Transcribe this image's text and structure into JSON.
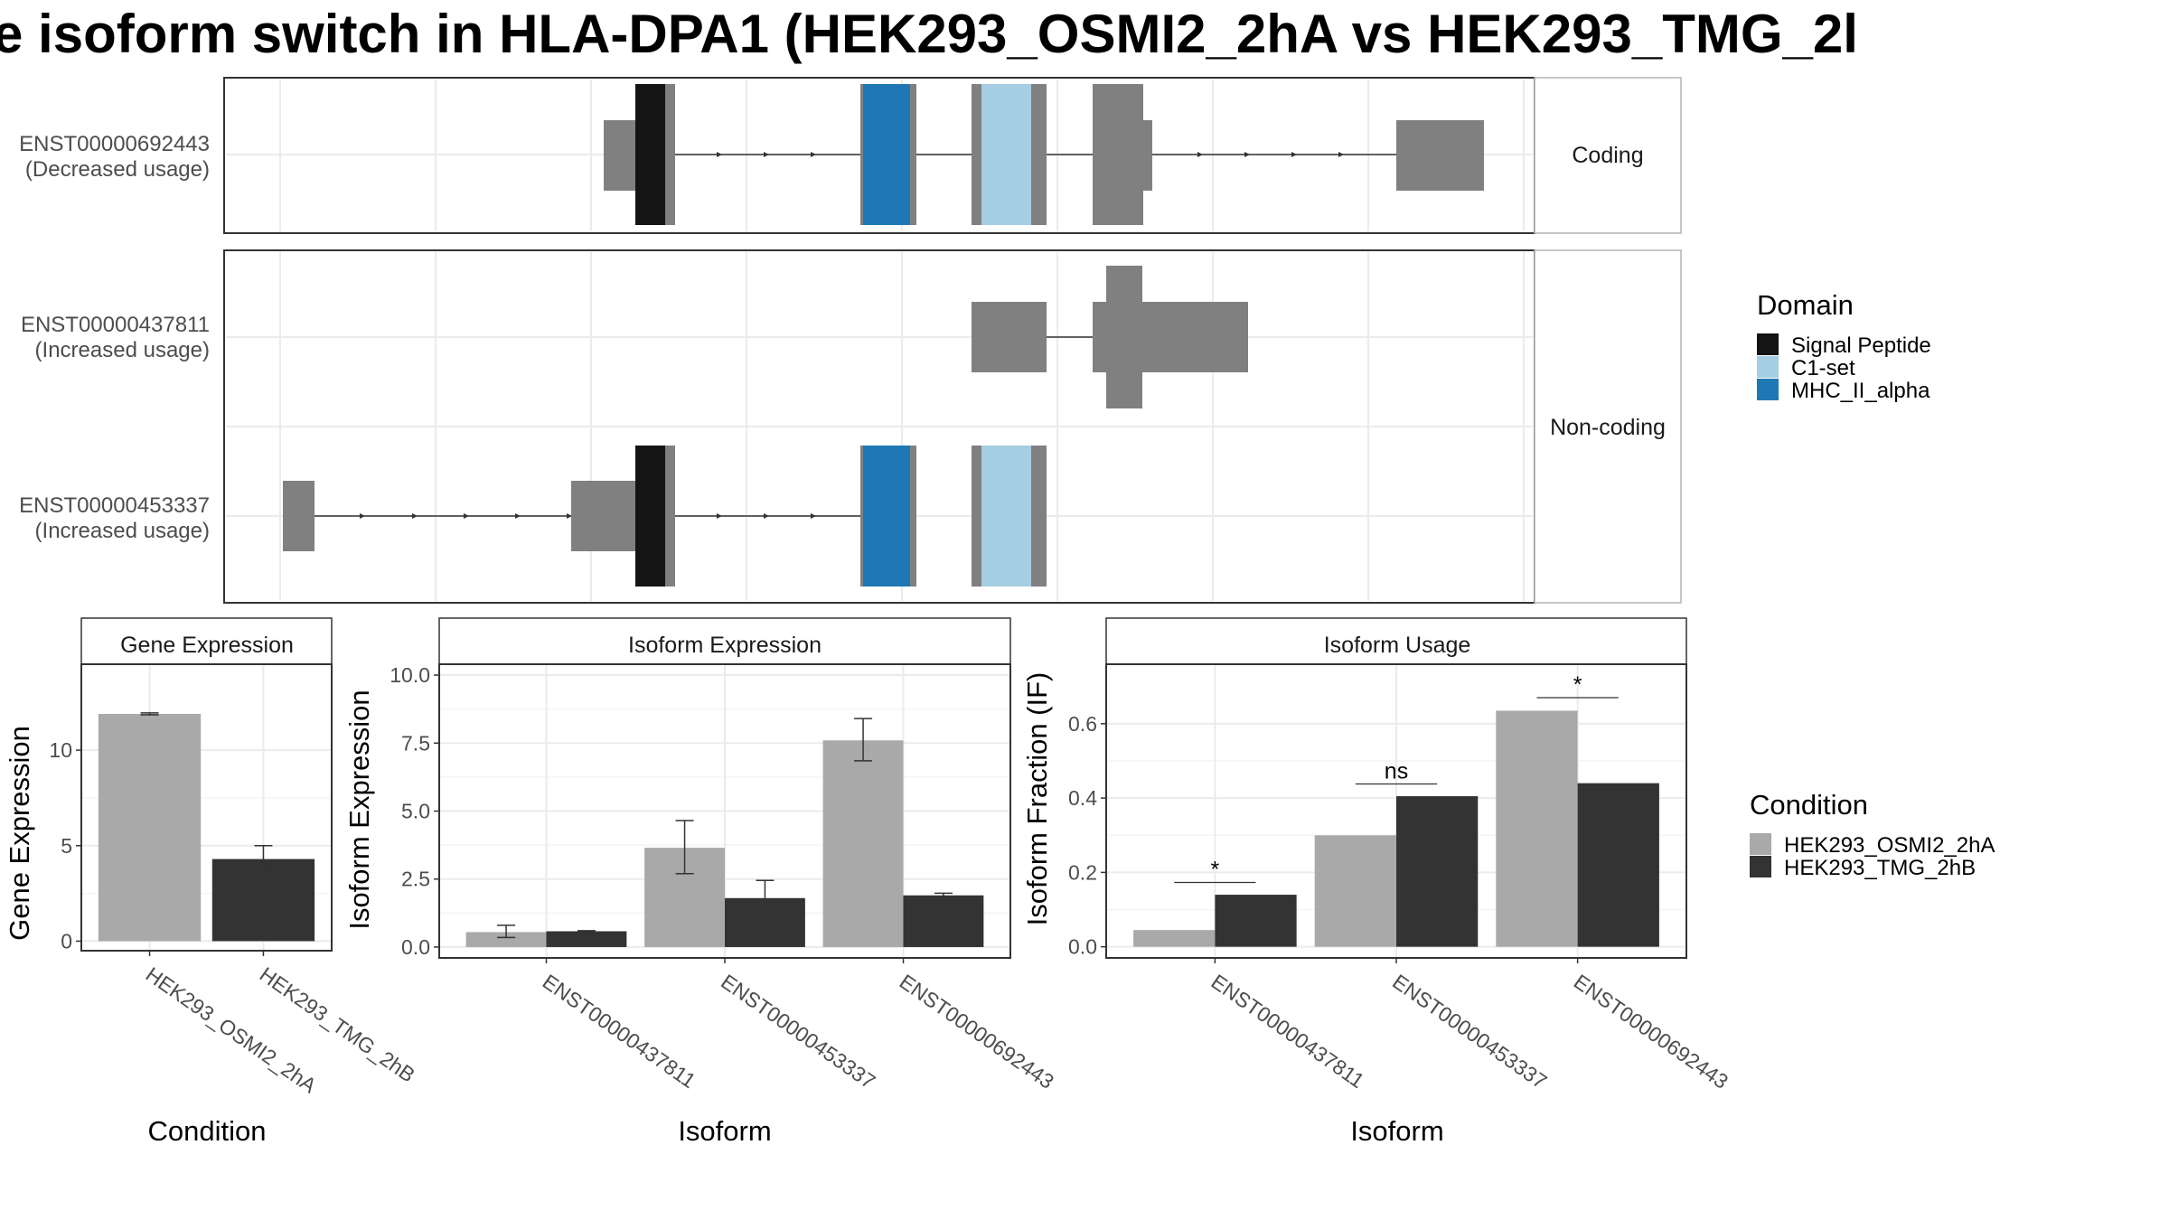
{
  "title": "e isoform switch in HLA-DPA1 (HEK293_OSMI2_2hA vs HEK293_TMG_2l",
  "colors": {
    "exon": "#808080",
    "intron": "#333333",
    "signal_peptide": "#141414",
    "c1_set": "#a6cee3",
    "mhc_ii_alpha": "#1f78b4",
    "condition_a": "#a9a9a9",
    "condition_b": "#333333",
    "grid": "#ebebeb",
    "strip_fill": "#ffffff"
  },
  "structure": {
    "facets": [
      {
        "label": "Coding",
        "transcripts": [
          "ENST00000692443"
        ]
      },
      {
        "label": "Non-coding",
        "transcripts": [
          "ENST00000437811",
          "ENST00000453337"
        ]
      }
    ],
    "transcripts": [
      {
        "id": "ENST00000692443",
        "usage": "(Decreased usage)"
      },
      {
        "id": "ENST00000437811",
        "usage": "(Increased usage)"
      },
      {
        "id": "ENST00000453337",
        "usage": "(Increased usage)"
      }
    ]
  },
  "domain_legend": {
    "title": "Domain",
    "items": [
      {
        "label": "Signal Peptide",
        "color": "#141414"
      },
      {
        "label": "C1-set",
        "color": "#a6cee3"
      },
      {
        "label": "MHC_II_alpha",
        "color": "#1f78b4"
      }
    ]
  },
  "condition_legend": {
    "title": "Condition",
    "items": [
      {
        "label": "HEK293_OSMI2_2hA",
        "color": "#a9a9a9"
      },
      {
        "label": "HEK293_TMG_2hB",
        "color": "#333333"
      }
    ]
  },
  "chart_data": [
    {
      "type": "bar",
      "title": "Gene Expression",
      "xlabel": "Condition",
      "ylabel": "Gene Expression",
      "categories": [
        "HEK293_OSMI2_2hA",
        "HEK293_TMG_2hB"
      ],
      "values": [
        11.9,
        4.3
      ],
      "error_low": [
        11.85,
        3.6
      ],
      "error_high": [
        11.95,
        5.0
      ],
      "bar_colors": [
        "#a9a9a9",
        "#333333"
      ],
      "ylim": [
        -0.5,
        14.5
      ],
      "yticks": [
        0,
        5,
        10
      ],
      "ytick_labels": [
        "0",
        "5",
        "10"
      ]
    },
    {
      "type": "bar",
      "title": "Isoform Expression",
      "xlabel": "Isoform",
      "ylabel": "Isoform Expression",
      "categories": [
        "ENST00000437811",
        "ENST00000453337",
        "ENST00000692443"
      ],
      "series": [
        {
          "name": "HEK293_OSMI2_2hA",
          "color": "#a9a9a9",
          "values": [
            0.55,
            3.65,
            7.6
          ],
          "error_low": [
            0.35,
            2.7,
            6.85
          ],
          "error_high": [
            0.8,
            4.65,
            8.4
          ]
        },
        {
          "name": "HEK293_TMG_2hB",
          "color": "#333333",
          "values": [
            0.58,
            1.8,
            1.9
          ],
          "error_low": [
            0.55,
            1.15,
            1.8
          ],
          "error_high": [
            0.6,
            2.45,
            1.98
          ]
        }
      ],
      "ylim": [
        -0.4,
        10.4
      ],
      "yticks": [
        0,
        2.5,
        5,
        7.5,
        10
      ],
      "ytick_labels": [
        "0.0",
        "2.5",
        "5.0",
        "7.5",
        "10.0"
      ]
    },
    {
      "type": "bar",
      "title": "Isoform Usage",
      "xlabel": "Isoform",
      "ylabel": "Isoform Fraction (IF)",
      "categories": [
        "ENST00000437811",
        "ENST00000453337",
        "ENST00000692443"
      ],
      "series": [
        {
          "name": "HEK293_OSMI2_2hA",
          "color": "#a9a9a9",
          "values": [
            0.045,
            0.3,
            0.635
          ]
        },
        {
          "name": "HEK293_TMG_2hB",
          "color": "#333333",
          "values": [
            0.14,
            0.405,
            0.44
          ]
        }
      ],
      "significance": [
        {
          "category": "ENST00000437811",
          "label": "*",
          "y": 0.173
        },
        {
          "category": "ENST00000453337",
          "label": "ns",
          "y": 0.438
        },
        {
          "category": "ENST00000692443",
          "label": "*",
          "y": 0.67
        }
      ],
      "ylim": [
        -0.03,
        0.76
      ],
      "yticks": [
        0,
        0.2,
        0.4,
        0.6
      ],
      "ytick_labels": [
        "0.0",
        "0.2",
        "0.4",
        "0.6"
      ]
    }
  ]
}
